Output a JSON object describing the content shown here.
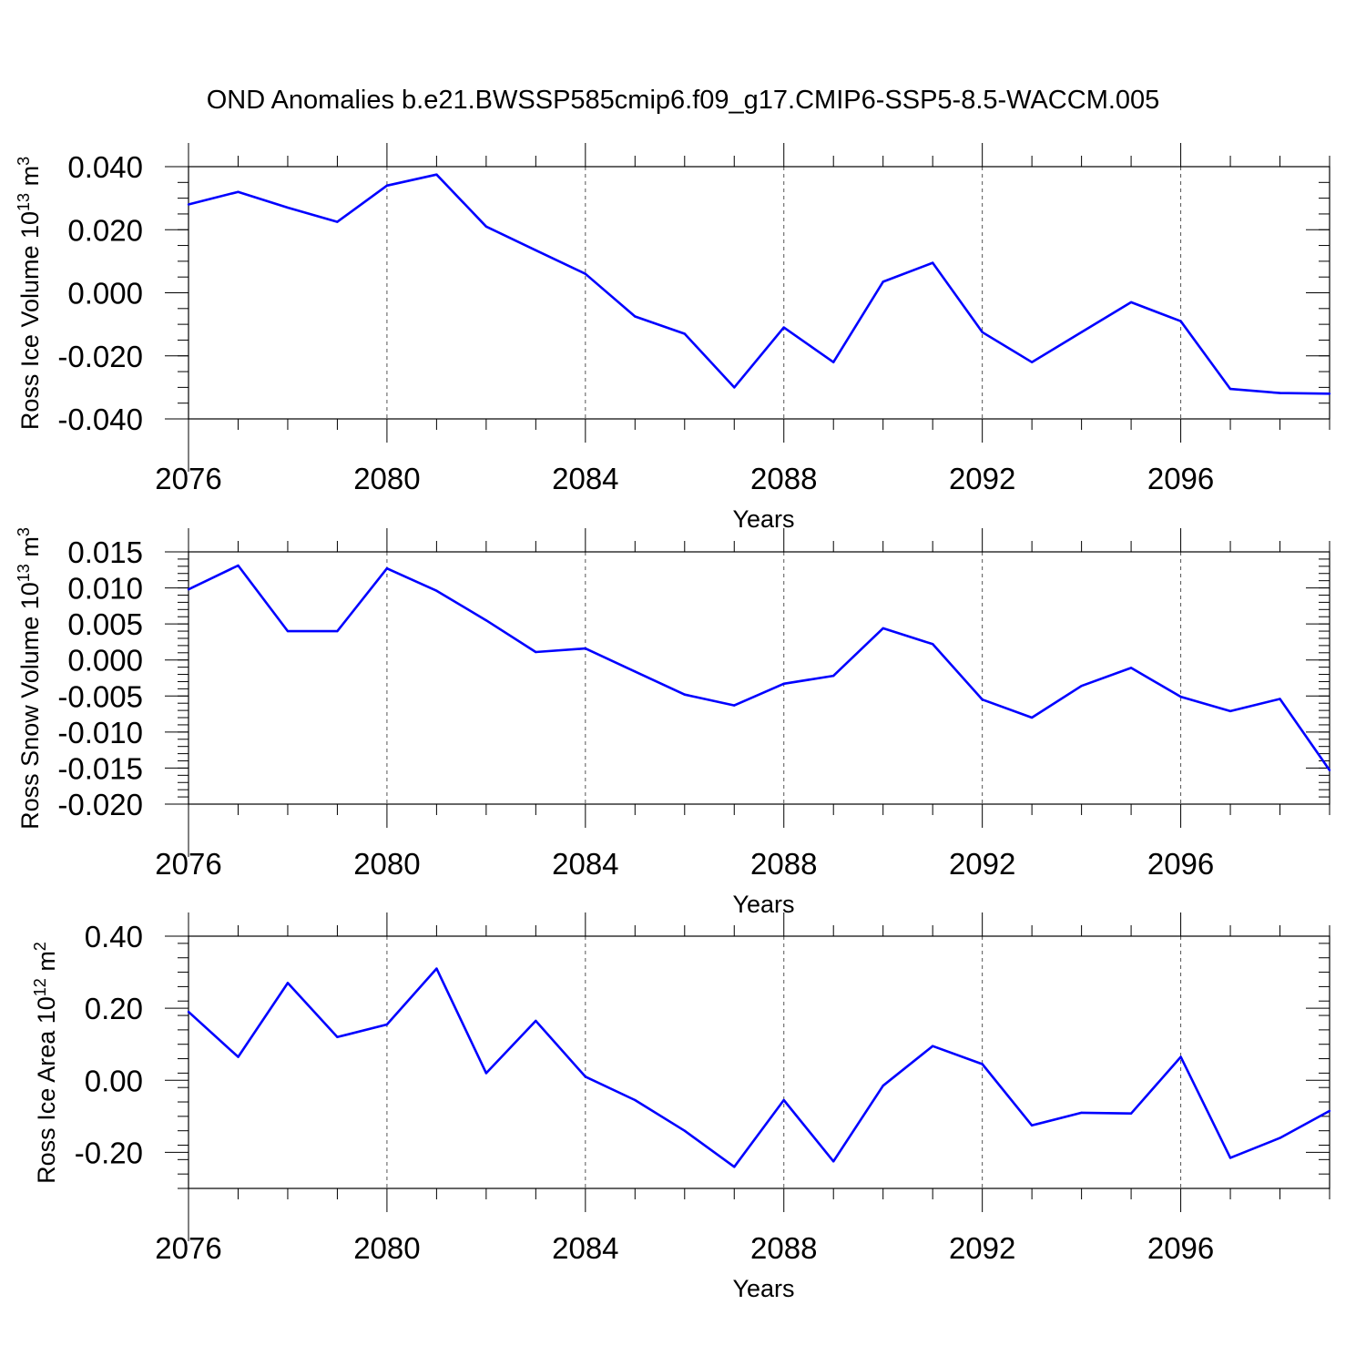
{
  "title": "OND Anomalies b.e21.BWSSP585cmip6.f09_g17.CMIP6-SSP5-8.5-WACCM.005",
  "line_color": "#0000ff",
  "chart_data": [
    {
      "type": "line",
      "name": "ross-ice-volume",
      "ylabel_main": "Ross Ice Volume 10",
      "ylabel_exp": "13",
      "ylabel_unit": "m",
      "ylabel_unit_exp": "3",
      "xlabel": "Years",
      "xlim": [
        2076,
        2099
      ],
      "ylim": [
        -0.04,
        0.04
      ],
      "xticks": [
        2076,
        2080,
        2084,
        2088,
        2092,
        2096
      ],
      "xtick_labels": [
        "2076",
        "2080",
        "2084",
        "2088",
        "2092",
        "2096"
      ],
      "yticks": [
        -0.04,
        -0.02,
        0.0,
        0.02,
        0.04
      ],
      "ytick_labels": [
        "-0.040",
        "-0.020",
        "0.000",
        "0.020",
        "0.040"
      ],
      "yminor_step": 0.005,
      "x": [
        2076,
        2077,
        2078,
        2079,
        2080,
        2081,
        2082,
        2083,
        2084,
        2085,
        2086,
        2087,
        2088,
        2089,
        2090,
        2091,
        2092,
        2093,
        2094,
        2095,
        2096,
        2097,
        2098,
        2099
      ],
      "values": [
        0.028,
        0.032,
        0.027,
        0.0225,
        0.034,
        0.0375,
        0.021,
        0.0135,
        0.006,
        -0.0075,
        -0.013,
        -0.03,
        -0.011,
        -0.022,
        0.0035,
        0.0095,
        -0.0125,
        -0.022,
        -0.0125,
        -0.003,
        -0.009,
        -0.0305,
        -0.0318,
        -0.032
      ]
    },
    {
      "type": "line",
      "name": "ross-snow-volume",
      "ylabel_main": "Ross Snow Volume 10",
      "ylabel_exp": "13",
      "ylabel_unit": "m",
      "ylabel_unit_exp": "3",
      "xlabel": "Years",
      "xlim": [
        2076,
        2099
      ],
      "ylim": [
        -0.02,
        0.015
      ],
      "xticks": [
        2076,
        2080,
        2084,
        2088,
        2092,
        2096
      ],
      "xtick_labels": [
        "2076",
        "2080",
        "2084",
        "2088",
        "2092",
        "2096"
      ],
      "yticks": [
        -0.02,
        -0.015,
        -0.01,
        -0.005,
        0.0,
        0.005,
        0.01,
        0.015
      ],
      "ytick_labels": [
        "-0.020",
        "-0.015",
        "-0.010",
        "-0.005",
        "0.000",
        "0.005",
        "0.010",
        "0.015"
      ],
      "yminor_step": 0.001,
      "x": [
        2076,
        2077,
        2078,
        2079,
        2080,
        2081,
        2082,
        2083,
        2084,
        2085,
        2086,
        2087,
        2088,
        2089,
        2090,
        2091,
        2092,
        2093,
        2094,
        2095,
        2096,
        2097,
        2098,
        2099
      ],
      "values": [
        0.0098,
        0.0131,
        0.004,
        0.004,
        0.0127,
        0.0096,
        0.0055,
        0.0011,
        0.0016,
        -0.0016,
        -0.0048,
        -0.0063,
        -0.0033,
        -0.0022,
        0.0044,
        0.0022,
        -0.0055,
        -0.008,
        -0.0036,
        -0.0011,
        -0.0051,
        -0.0071,
        -0.0054,
        -0.0153
      ]
    },
    {
      "type": "line",
      "name": "ross-ice-area",
      "ylabel_main": "Ross Ice Area 10",
      "ylabel_exp": "12",
      "ylabel_unit": "m",
      "ylabel_unit_exp": "2",
      "xlabel": "Years",
      "xlim": [
        2076,
        2099
      ],
      "ylim": [
        -0.3,
        0.4
      ],
      "xticks": [
        2076,
        2080,
        2084,
        2088,
        2092,
        2096
      ],
      "xtick_labels": [
        "2076",
        "2080",
        "2084",
        "2088",
        "2092",
        "2096"
      ],
      "yticks": [
        -0.2,
        0.0,
        0.2,
        0.4
      ],
      "ytick_labels": [
        "-0.20",
        "0.00",
        "0.20",
        "0.40"
      ],
      "yminor_step": 0.04,
      "x": [
        2076,
        2077,
        2078,
        2079,
        2080,
        2081,
        2082,
        2083,
        2084,
        2085,
        2086,
        2087,
        2088,
        2089,
        2090,
        2091,
        2092,
        2093,
        2094,
        2095,
        2096,
        2097,
        2098,
        2099
      ],
      "values": [
        0.19,
        0.065,
        0.27,
        0.12,
        0.155,
        0.31,
        0.02,
        0.165,
        0.01,
        -0.055,
        -0.14,
        -0.24,
        -0.055,
        -0.225,
        -0.015,
        0.095,
        0.045,
        -0.125,
        -0.09,
        -0.092,
        0.065,
        -0.215,
        -0.16,
        -0.085
      ]
    }
  ]
}
